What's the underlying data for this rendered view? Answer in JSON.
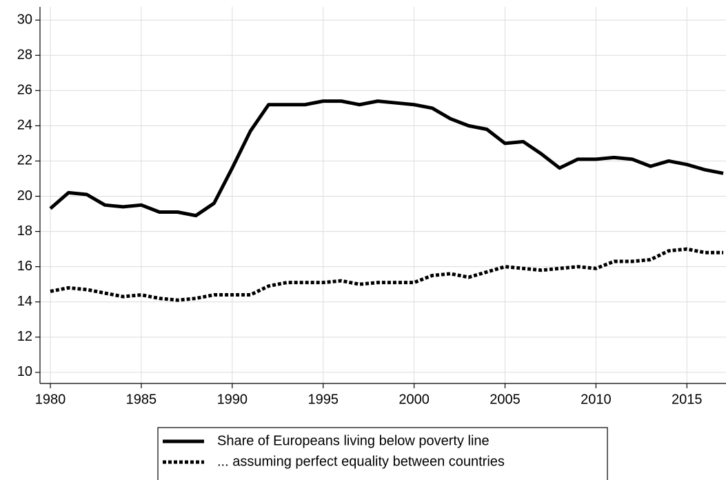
{
  "chart_data": {
    "type": "line",
    "x": [
      1980,
      1981,
      1982,
      1983,
      1984,
      1985,
      1986,
      1987,
      1988,
      1989,
      1990,
      1991,
      1992,
      1993,
      1994,
      1995,
      1996,
      1997,
      1998,
      1999,
      2000,
      2001,
      2002,
      2003,
      2004,
      2005,
      2006,
      2007,
      2008,
      2009,
      2010,
      2011,
      2012,
      2013,
      2014,
      2015,
      2016,
      2017
    ],
    "series": [
      {
        "name": "Share of Europeans living below poverty line",
        "color": "#000000",
        "style": "solid",
        "values": [
          19.3,
          20.2,
          20.1,
          19.5,
          19.4,
          19.5,
          19.1,
          19.1,
          18.9,
          19.6,
          21.6,
          23.7,
          25.2,
          25.2,
          25.2,
          25.4,
          25.4,
          25.2,
          25.4,
          25.3,
          25.2,
          25.0,
          24.4,
          24.0,
          23.8,
          23.0,
          23.1,
          22.4,
          21.6,
          22.1,
          22.1,
          22.2,
          22.1,
          21.7,
          22.0,
          21.8,
          21.5,
          21.3
        ]
      },
      {
        "name": "... assuming perfect equality between countries",
        "color": "#000000",
        "style": "dotted",
        "values": [
          14.6,
          14.8,
          14.7,
          14.5,
          14.3,
          14.4,
          14.2,
          14.1,
          14.2,
          14.4,
          14.4,
          14.4,
          14.9,
          15.1,
          15.1,
          15.1,
          15.2,
          15.0,
          15.1,
          15.1,
          15.1,
          15.5,
          15.6,
          15.4,
          15.7,
          16.0,
          15.9,
          15.8,
          15.9,
          16.0,
          15.9,
          16.3,
          16.3,
          16.4,
          16.9,
          17.0,
          16.8,
          16.8
        ]
      }
    ],
    "xlim": [
      1979.43,
      2017.15
    ],
    "xticks": [
      1980,
      1985,
      1990,
      1995,
      2000,
      2005,
      2010,
      2015
    ],
    "ylim": [
      9.37,
      30.75
    ],
    "yticks": [
      10,
      12,
      14,
      16,
      18,
      20,
      22,
      24,
      26,
      28,
      30
    ],
    "grid": true,
    "legend": "bottom"
  }
}
